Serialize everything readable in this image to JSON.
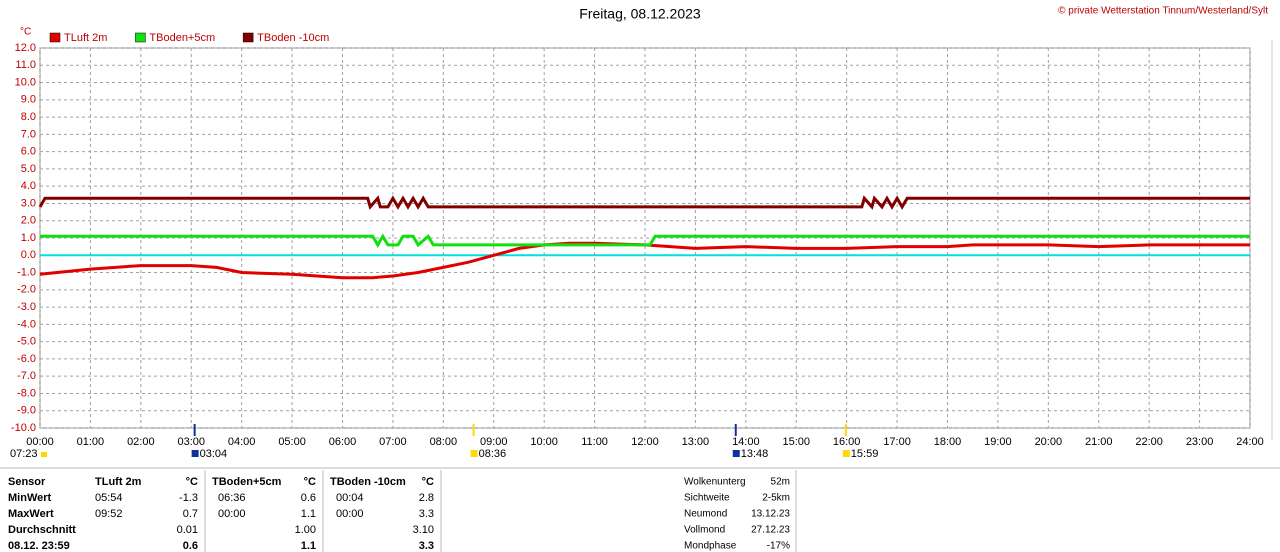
{
  "chart_data": {
    "type": "line",
    "title": "Freitag, 08.12.2023",
    "subtitle": "© private Wetterstation Tinnum/Westerland/Sylt",
    "y_label": "°C",
    "grid": true,
    "xlim": [
      0,
      24
    ],
    "ylim": [
      -10,
      12
    ],
    "xticks": [
      {
        "value": 0,
        "label": "00:00"
      },
      {
        "value": 1,
        "label": "01:00"
      },
      {
        "value": 2,
        "label": "02:00"
      },
      {
        "value": 3,
        "label": "03:00"
      },
      {
        "value": 4,
        "label": "04:00"
      },
      {
        "value": 5,
        "label": "05:00"
      },
      {
        "value": 6,
        "label": "06:00"
      },
      {
        "value": 7,
        "label": "07:00"
      },
      {
        "value": 8,
        "label": "08:00"
      },
      {
        "value": 9,
        "label": "09:00"
      },
      {
        "value": 10,
        "label": "10:00"
      },
      {
        "value": 11,
        "label": "11:00"
      },
      {
        "value": 12,
        "label": "12:00"
      },
      {
        "value": 13,
        "label": "13:00"
      },
      {
        "value": 14,
        "label": "14:00"
      },
      {
        "value": 15,
        "label": "15:00"
      },
      {
        "value": 16,
        "label": "16:00"
      },
      {
        "value": 17,
        "label": "17:00"
      },
      {
        "value": 18,
        "label": "18:00"
      },
      {
        "value": 19,
        "label": "19:00"
      },
      {
        "value": 20,
        "label": "20:00"
      },
      {
        "value": 21,
        "label": "21:00"
      },
      {
        "value": 22,
        "label": "22:00"
      },
      {
        "value": 23,
        "label": "23:00"
      },
      {
        "value": 24,
        "label": "24:00"
      }
    ],
    "yticks": [
      {
        "value": 12,
        "label": "12.0"
      },
      {
        "value": 11,
        "label": "11.0"
      },
      {
        "value": 10,
        "label": "10.0"
      },
      {
        "value": 9,
        "label": "9.0"
      },
      {
        "value": 8,
        "label": "8.0"
      },
      {
        "value": 7,
        "label": "7.0"
      },
      {
        "value": 6,
        "label": "6.0"
      },
      {
        "value": 5,
        "label": "5.0"
      },
      {
        "value": 4,
        "label": "4.0"
      },
      {
        "value": 3,
        "label": "3.0"
      },
      {
        "value": 2,
        "label": "2.0"
      },
      {
        "value": 1,
        "label": "1.0"
      },
      {
        "value": 0,
        "label": "0.0"
      },
      {
        "value": -1,
        "label": "-1.0"
      },
      {
        "value": -2,
        "label": "-2.0"
      },
      {
        "value": -3,
        "label": "-3.0"
      },
      {
        "value": -4,
        "label": "-4.0"
      },
      {
        "value": -5,
        "label": "-5.0"
      },
      {
        "value": -6,
        "label": "-6.0"
      },
      {
        "value": -7,
        "label": "-7.0"
      },
      {
        "value": -8,
        "label": "-8.0"
      },
      {
        "value": -9,
        "label": "-9.0"
      },
      {
        "value": -10,
        "label": "-10.0"
      }
    ],
    "zero_line_color": "#00e0e0",
    "series": [
      {
        "name": "TLuft 2m",
        "color": "#e00000",
        "x": [
          0,
          1,
          2,
          3,
          3.5,
          4,
          5,
          6,
          6.6,
          7,
          7.5,
          8,
          8.5,
          9,
          9.5,
          10,
          10.5,
          11,
          12,
          12.5,
          13,
          14,
          15,
          16,
          17,
          18,
          18.5,
          20,
          21,
          22,
          23,
          24
        ],
        "values": [
          -1.1,
          -0.8,
          -0.6,
          -0.6,
          -0.7,
          -1.0,
          -1.1,
          -1.3,
          -1.3,
          -1.2,
          -1.0,
          -0.7,
          -0.4,
          0.0,
          0.4,
          0.6,
          0.7,
          0.7,
          0.6,
          0.5,
          0.4,
          0.5,
          0.4,
          0.4,
          0.5,
          0.5,
          0.6,
          0.6,
          0.5,
          0.6,
          0.6,
          0.6
        ]
      },
      {
        "name": "TBoden+5cm",
        "color": "#10e010",
        "x": [
          0,
          6.6,
          6.7,
          6.8,
          6.9,
          7.1,
          7.2,
          7.4,
          7.5,
          7.7,
          7.8,
          12.1,
          12.2,
          24
        ],
        "values": [
          1.1,
          1.1,
          0.6,
          1.1,
          0.6,
          0.6,
          1.1,
          1.1,
          0.6,
          1.1,
          0.6,
          0.6,
          1.1,
          1.1
        ]
      },
      {
        "name": "TBoden -10cm",
        "color": "#800000",
        "x": [
          0,
          0.1,
          6.5,
          6.55,
          6.7,
          6.75,
          6.9,
          7.0,
          7.1,
          7.2,
          7.3,
          7.4,
          7.5,
          7.6,
          7.7,
          7.8,
          16.3,
          16.35,
          16.5,
          16.55,
          16.7,
          16.8,
          16.9,
          17.0,
          17.1,
          17.2,
          17.3,
          24
        ],
        "values": [
          2.8,
          3.3,
          3.3,
          2.8,
          3.3,
          2.8,
          2.8,
          3.3,
          2.8,
          3.3,
          2.8,
          3.3,
          2.8,
          3.3,
          2.8,
          2.8,
          2.8,
          3.3,
          2.8,
          3.3,
          2.8,
          3.3,
          2.8,
          3.3,
          2.8,
          3.3,
          3.3,
          3.3
        ]
      }
    ],
    "markers": [
      {
        "label": "07:23",
        "color": "#ffd800"
      },
      {
        "label": "03:04",
        "x": 3.067,
        "color": "#1030a0"
      },
      {
        "label": "08:36",
        "x": 8.6,
        "color": "#ffd800"
      },
      {
        "label": "13:48",
        "x": 13.8,
        "color": "#1030a0"
      },
      {
        "label": "15:59",
        "x": 15.983,
        "color": "#ffd800"
      }
    ]
  },
  "table": {
    "header": [
      "Sensor",
      "TLuft 2m",
      "°C",
      "TBoden+5cm",
      "°C",
      "TBoden -10cm",
      "°C"
    ],
    "rows": [
      [
        "MinWert",
        "05:54",
        "-1.3",
        "06:36",
        "0.6",
        "00:04",
        "2.8"
      ],
      [
        "MaxWert",
        "09:52",
        "0.7",
        "00:00",
        "1.1",
        "00:00",
        "3.3"
      ],
      [
        "Durchschnitt",
        null,
        "0.01",
        null,
        "1.00",
        null,
        "3.10"
      ],
      [
        "08.12. 23:59",
        null,
        "0.6",
        null,
        "1.1",
        null,
        "3.3"
      ]
    ]
  },
  "info": [
    [
      "Wolkenunterg",
      "52m"
    ],
    [
      "Sichtweite",
      "2-5km"
    ],
    [
      "Neumond",
      "13.12.23"
    ],
    [
      "Vollmond",
      "27.12.23"
    ],
    [
      "Mondphase",
      "-17%"
    ]
  ]
}
